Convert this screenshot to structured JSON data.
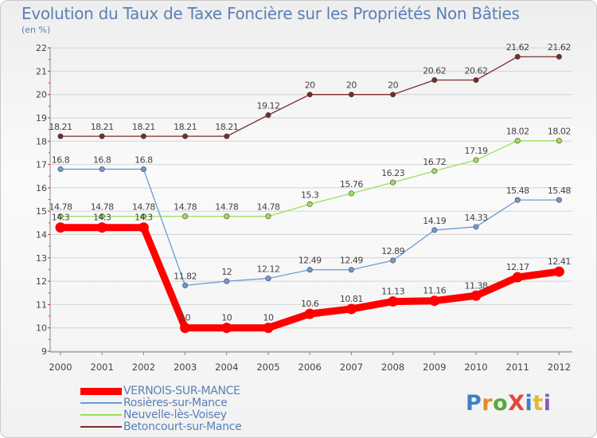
{
  "title": "Evolution du Taux de Taxe Foncière sur les Propriétés Non Bâties",
  "unit": "(en %)",
  "logo": {
    "text": "ProXiti",
    "colors": [
      "#3f7fc4",
      "#e8882e",
      "#5aa63f",
      "#e24a38",
      "#3f7fc4",
      "#e8b62e",
      "#8a5cb8"
    ]
  },
  "chart_data": {
    "type": "line",
    "categories": [
      "2000",
      "2001",
      "2002",
      "2003",
      "2004",
      "2005",
      "2006",
      "2007",
      "2008",
      "2009",
      "2010",
      "2011",
      "2012"
    ],
    "ylim": [
      9,
      22
    ],
    "yticks": [
      9,
      10,
      11,
      12,
      13,
      14,
      15,
      16,
      17,
      18,
      19,
      20,
      21,
      22
    ],
    "legend_position": "bottom-left",
    "series": [
      {
        "name": "VERNOIS-SUR-MANCE",
        "color": "#ff0000",
        "width": 9,
        "values": [
          14.3,
          14.3,
          14.3,
          10,
          10,
          10,
          10.6,
          10.81,
          11.13,
          11.16,
          11.38,
          12.17,
          12.41
        ],
        "labels": [
          "14.3",
          "14.3",
          "14.3",
          "10",
          "10",
          "10",
          "10.6",
          "10.81",
          "11.13",
          "11.16",
          "11.38",
          "12.17",
          "12.41"
        ]
      },
      {
        "name": "Rosières-sur-Mance",
        "color": "#6d9bd1",
        "width": 1.3,
        "values": [
          16.8,
          16.8,
          16.8,
          11.82,
          12,
          12.12,
          12.49,
          12.49,
          12.89,
          14.19,
          14.33,
          15.48,
          15.48
        ],
        "labels": [
          "16.8",
          "16.8",
          "16.8",
          "11.82",
          "12",
          "12.12",
          "12.49",
          "12.49",
          "12.89",
          "14.19",
          "14.33",
          "15.48",
          "15.48"
        ]
      },
      {
        "name": "Neuvelle-lès-Voisey",
        "color": "#99e05b",
        "width": 1.3,
        "values": [
          14.78,
          14.78,
          14.78,
          14.78,
          14.78,
          14.78,
          15.3,
          15.76,
          16.23,
          16.72,
          17.19,
          18.02,
          18.02
        ],
        "labels": [
          "14.78",
          "14.78",
          "14.78",
          "14.78",
          "14.78",
          "14.78",
          "15.3",
          "15.76",
          "16.23",
          "16.72",
          "17.19",
          "18.02",
          "18.02"
        ]
      },
      {
        "name": "Betoncourt-sur-Mance",
        "color": "#7b2b2b",
        "width": 1.3,
        "values": [
          18.21,
          18.21,
          18.21,
          18.21,
          18.21,
          19.12,
          20,
          20,
          20,
          20.62,
          20.62,
          21.62,
          21.62
        ],
        "labels": [
          "18.21",
          "18.21",
          "18.21",
          "18.21",
          "18.21",
          "19.12",
          "20",
          "20",
          "20",
          "20.62",
          "20.62",
          "21.62",
          "21.62"
        ]
      }
    ]
  }
}
